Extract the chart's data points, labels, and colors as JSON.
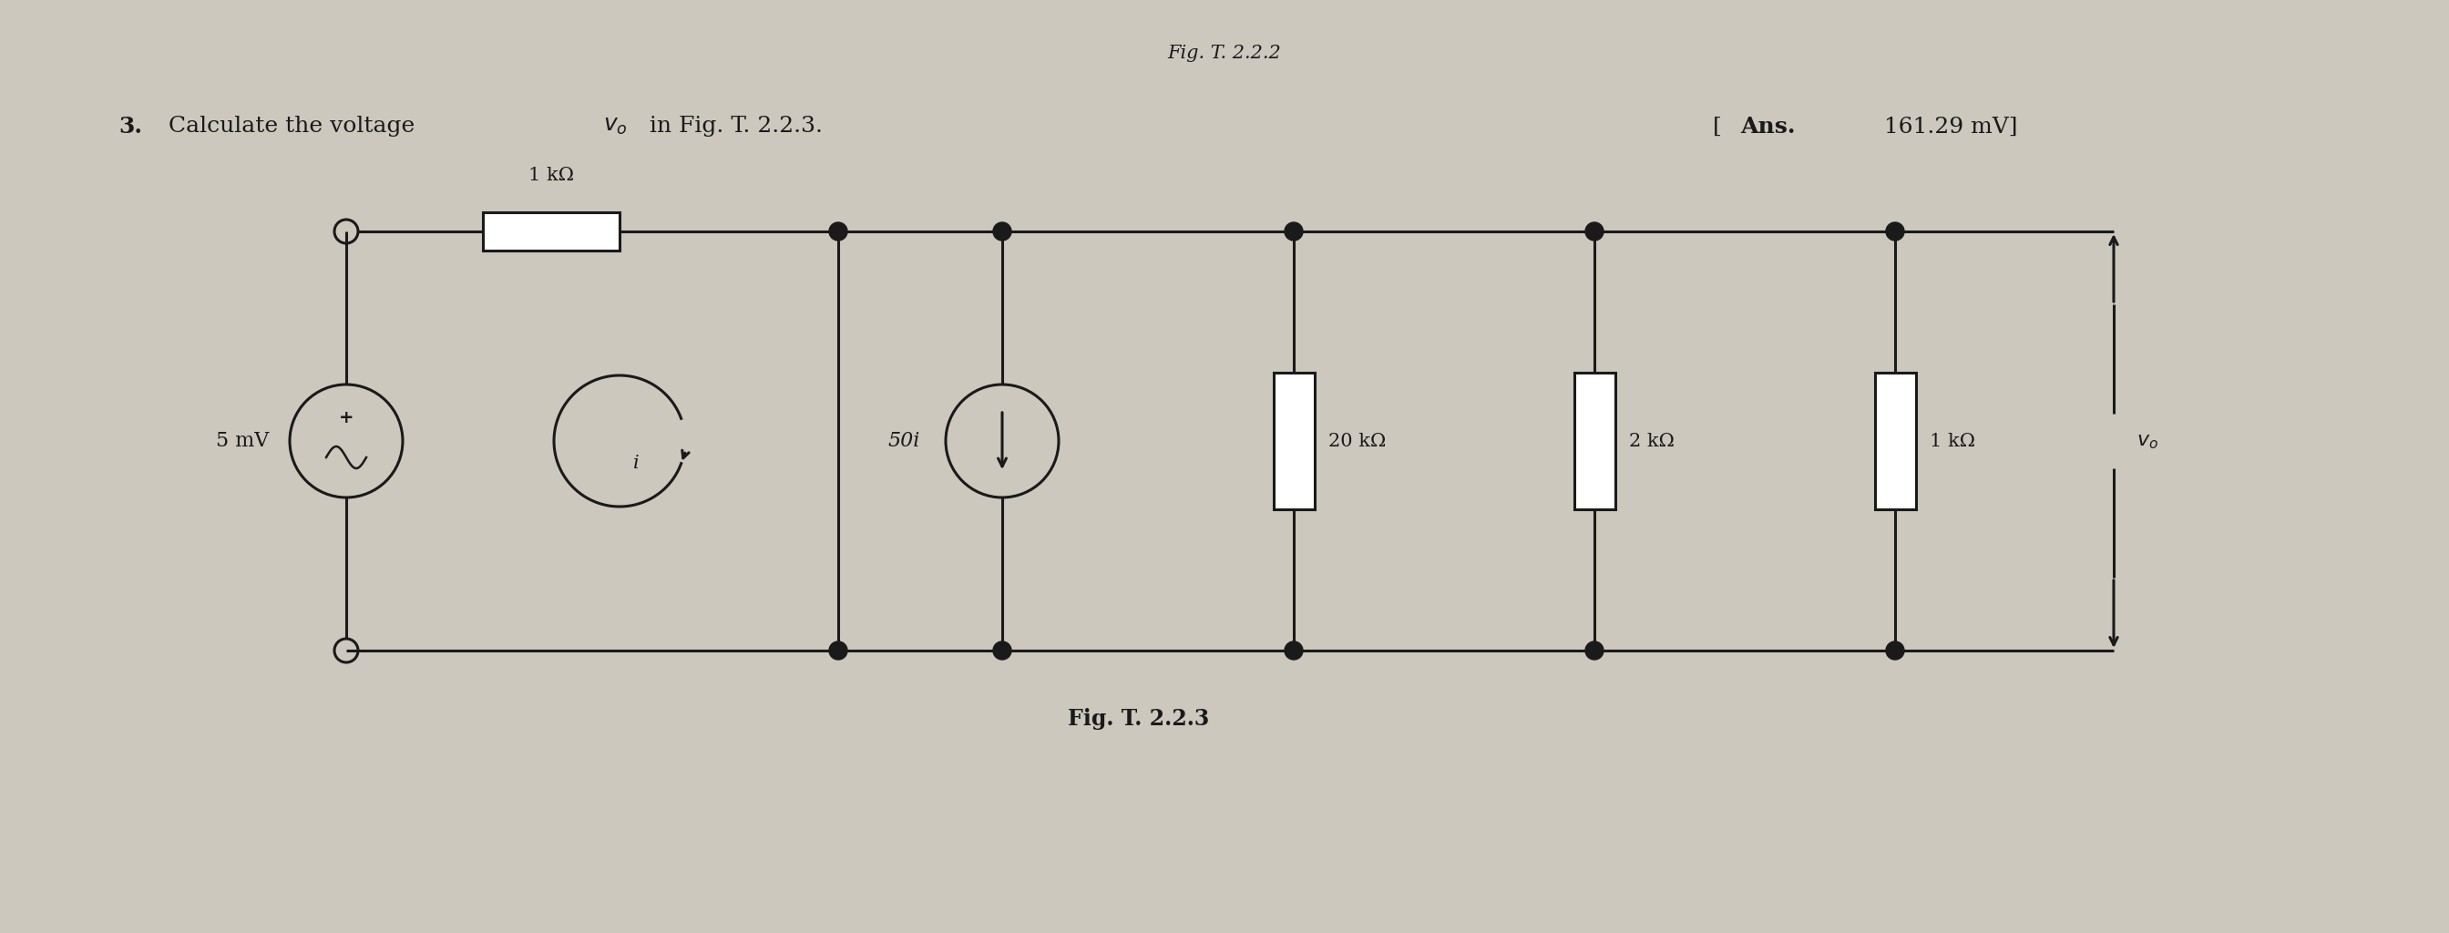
{
  "bg_color": "#ccc8be",
  "line_color": "#1a1a1a",
  "title_text_3": "3.",
  "title_text_main": "  Calculate the voltage ",
  "title_v0": "$v_o$",
  "title_text_end": " in Fig. T. 2.2.3.",
  "ans_bold": "Ans.",
  "ans_val": " 161.29 mV]",
  "ans_bracket": "[",
  "fig_label": "Fig. T. 2.2.3",
  "top_label": "Fig. T. 2.2.2",
  "res1_label": "1 kΩ",
  "res2_label": "20 kΩ",
  "res3_label": "2 kΩ",
  "res4_label": "1 kΩ",
  "vs_label": "5 mV",
  "cs_label": "50",
  "cs_label_i": "i",
  "vo_label": "$v_o$",
  "i_label": "i"
}
